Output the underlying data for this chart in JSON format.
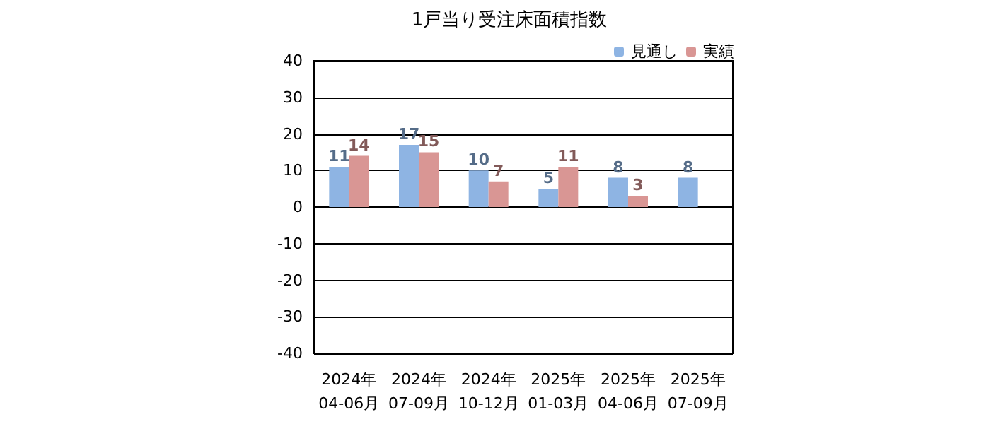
{
  "chart_data": {
    "type": "bar",
    "title": "1戸当り受注床面積指数",
    "categories": [
      "2024年\n04-06月",
      "2024年\n07-09月",
      "2024年\n10-12月",
      "2025年\n01-03月",
      "2025年\n04-06月",
      "2025年\n07-09月"
    ],
    "series": [
      {
        "name": "見通し",
        "color": "#8eb4e3",
        "values": [
          11,
          17,
          10,
          5,
          8,
          8
        ]
      },
      {
        "name": "実績",
        "color": "#d99694",
        "values": [
          14,
          15,
          7,
          11,
          3,
          null
        ]
      }
    ],
    "ylim": [
      -40,
      40
    ],
    "yticks": [
      -40,
      -30,
      -20,
      -10,
      0,
      10,
      20,
      30,
      40
    ],
    "grid": "y",
    "legend": "top right",
    "data_labels": true
  }
}
